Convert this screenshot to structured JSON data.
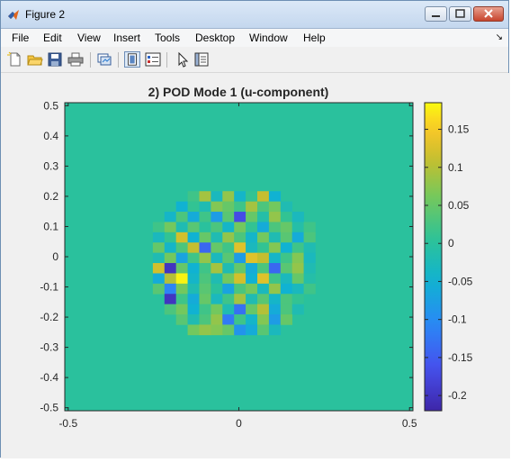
{
  "window": {
    "title": "Figure 2"
  },
  "menu": {
    "items": [
      "File",
      "Edit",
      "View",
      "Insert",
      "Tools",
      "Desktop",
      "Window",
      "Help"
    ]
  },
  "toolbar": {
    "buttons": [
      "new-figure",
      "open-file",
      "save",
      "print",
      "link-plot",
      "dock",
      "insert-legend",
      "pointer",
      "property-inspector"
    ]
  },
  "colors": {
    "field_background": "#2fc39a",
    "grid_cell": "#0fb1b2",
    "colormap": "parula"
  },
  "chart_data": {
    "type": "heatmap",
    "title": "2) POD Mode 1 (u-component)",
    "xlim": [
      -0.51,
      0.51
    ],
    "ylim": [
      -0.51,
      0.51
    ],
    "x_ticks": [
      -0.5,
      0,
      0.5
    ],
    "x_tick_labels": [
      "-0.5",
      "0",
      "0.5"
    ],
    "y_ticks": [
      0.5,
      0.4,
      0.3,
      0.2,
      0.1,
      0,
      -0.1,
      -0.2,
      -0.3,
      -0.4,
      -0.5
    ],
    "y_tick_labels": [
      "0.5",
      "0.4",
      "0.3",
      "0.2",
      "0.1",
      "0",
      "-0.1",
      "-0.2",
      "-0.3",
      "-0.4",
      "-0.5"
    ],
    "colorbar": {
      "range": [
        -0.22,
        0.185
      ],
      "ticks": [
        0.15,
        0.1,
        0.05,
        0,
        -0.05,
        -0.1,
        -0.15,
        -0.2
      ],
      "tick_labels": [
        "0.15",
        "0.1",
        "0.05",
        "0",
        "-0.05",
        "-0.1",
        "-0.15",
        "-0.2"
      ]
    },
    "grid": {
      "cell_size": 0.034,
      "circle_radius": 0.3,
      "background_value": 0
    },
    "cells": [
      [
        -0.133,
        0.2,
        0.02
      ],
      [
        -0.099,
        0.2,
        0.09
      ],
      [
        -0.065,
        0.2,
        -0.03
      ],
      [
        -0.031,
        0.2,
        0.08
      ],
      [
        0.003,
        0.2,
        -0.04
      ],
      [
        0.037,
        0.2,
        0.01
      ],
      [
        0.071,
        0.2,
        0.11
      ],
      [
        0.105,
        0.2,
        -0.05
      ],
      [
        -0.167,
        0.166,
        -0.05
      ],
      [
        -0.133,
        0.166,
        0.01
      ],
      [
        -0.099,
        0.166,
        -0.02
      ],
      [
        -0.065,
        0.166,
        0.07
      ],
      [
        -0.031,
        0.166,
        0.05
      ],
      [
        0.003,
        0.166,
        0.02
      ],
      [
        0.037,
        0.166,
        0.09
      ],
      [
        0.071,
        0.166,
        0.03
      ],
      [
        0.105,
        0.166,
        0.06
      ],
      [
        0.139,
        0.166,
        -0.02
      ],
      [
        -0.201,
        0.132,
        -0.04
      ],
      [
        -0.167,
        0.132,
        0.03
      ],
      [
        -0.133,
        0.132,
        -0.06
      ],
      [
        -0.099,
        0.132,
        0.02
      ],
      [
        -0.065,
        0.132,
        -0.08
      ],
      [
        -0.031,
        0.132,
        0.04
      ],
      [
        0.003,
        0.132,
        -0.17
      ],
      [
        0.037,
        0.132,
        0.05
      ],
      [
        0.071,
        0.132,
        -0.01
      ],
      [
        0.105,
        0.132,
        0.08
      ],
      [
        0.139,
        0.132,
        0.01
      ],
      [
        0.173,
        0.132,
        -0.03
      ],
      [
        -0.235,
        0.098,
        0.02
      ],
      [
        -0.201,
        0.098,
        0.06
      ],
      [
        -0.167,
        0.098,
        -0.02
      ],
      [
        -0.133,
        0.098,
        0.04
      ],
      [
        -0.099,
        0.098,
        0.0
      ],
      [
        -0.065,
        0.098,
        0.03
      ],
      [
        -0.031,
        0.098,
        -0.04
      ],
      [
        0.003,
        0.098,
        0.06
      ],
      [
        0.037,
        0.098,
        0.01
      ],
      [
        0.071,
        0.098,
        -0.06
      ],
      [
        0.105,
        0.098,
        0.03
      ],
      [
        0.139,
        0.098,
        0.05
      ],
      [
        0.173,
        0.098,
        -0.01
      ],
      [
        0.207,
        0.098,
        0.02
      ],
      [
        -0.235,
        0.064,
        -0.03
      ],
      [
        -0.201,
        0.064,
        0.01
      ],
      [
        -0.167,
        0.064,
        0.12
      ],
      [
        -0.133,
        0.064,
        -0.05
      ],
      [
        -0.099,
        0.064,
        0.05
      ],
      [
        -0.065,
        0.064,
        -0.02
      ],
      [
        -0.031,
        0.064,
        0.08
      ],
      [
        0.003,
        0.064,
        0.03
      ],
      [
        0.037,
        0.064,
        -0.04
      ],
      [
        0.071,
        0.064,
        0.06
      ],
      [
        0.105,
        0.064,
        -0.02
      ],
      [
        0.139,
        0.064,
        0.04
      ],
      [
        0.173,
        0.064,
        -0.06
      ],
      [
        0.207,
        0.064,
        0.03
      ],
      [
        -0.235,
        0.03,
        0.05
      ],
      [
        -0.201,
        0.03,
        -0.04
      ],
      [
        -0.167,
        0.03,
        0.03
      ],
      [
        -0.133,
        0.03,
        0.11
      ],
      [
        -0.099,
        0.03,
        -0.14
      ],
      [
        -0.065,
        0.03,
        0.05
      ],
      [
        -0.031,
        0.03,
        0.02
      ],
      [
        0.003,
        0.03,
        0.13
      ],
      [
        0.037,
        0.03,
        -0.03
      ],
      [
        0.071,
        0.03,
        0.01
      ],
      [
        0.105,
        0.03,
        0.07
      ],
      [
        0.139,
        0.03,
        -0.05
      ],
      [
        0.173,
        0.03,
        0.02
      ],
      [
        0.207,
        0.03,
        -0.02
      ],
      [
        -0.235,
        -0.004,
        -0.02
      ],
      [
        -0.201,
        -0.004,
        0.06
      ],
      [
        -0.167,
        -0.004,
        -0.07
      ],
      [
        -0.133,
        -0.004,
        0.02
      ],
      [
        -0.099,
        -0.004,
        0.08
      ],
      [
        -0.065,
        -0.004,
        -0.03
      ],
      [
        -0.031,
        -0.004,
        0.04
      ],
      [
        0.003,
        -0.004,
        -0.08
      ],
      [
        0.037,
        -0.004,
        0.13
      ],
      [
        0.071,
        -0.004,
        0.11
      ],
      [
        0.105,
        -0.004,
        -0.04
      ],
      [
        0.139,
        -0.004,
        0.02
      ],
      [
        0.173,
        -0.004,
        0.07
      ],
      [
        0.207,
        -0.004,
        -0.03
      ],
      [
        -0.235,
        -0.038,
        0.12
      ],
      [
        -0.201,
        -0.038,
        -0.2
      ],
      [
        -0.167,
        -0.038,
        0.05
      ],
      [
        -0.133,
        -0.038,
        -0.05
      ],
      [
        -0.099,
        -0.038,
        0.02
      ],
      [
        -0.065,
        -0.038,
        0.09
      ],
      [
        -0.031,
        -0.038,
        -0.02
      ],
      [
        0.003,
        -0.038,
        0.05
      ],
      [
        0.037,
        -0.038,
        -0.06
      ],
      [
        0.071,
        -0.038,
        0.03
      ],
      [
        0.105,
        -0.038,
        -0.14
      ],
      [
        0.139,
        -0.038,
        0.04
      ],
      [
        0.173,
        -0.038,
        0.08
      ],
      [
        0.207,
        -0.038,
        -0.02
      ],
      [
        -0.235,
        -0.072,
        -0.06
      ],
      [
        -0.201,
        -0.072,
        0.1
      ],
      [
        -0.167,
        -0.072,
        0.18
      ],
      [
        -0.133,
        -0.072,
        -0.04
      ],
      [
        -0.099,
        -0.072,
        0.03
      ],
      [
        -0.065,
        -0.072,
        -0.02
      ],
      [
        -0.031,
        -0.072,
        0.06
      ],
      [
        0.003,
        -0.072,
        0.12
      ],
      [
        0.037,
        -0.072,
        -0.05
      ],
      [
        0.071,
        -0.072,
        0.13
      ],
      [
        0.105,
        -0.072,
        0.02
      ],
      [
        0.139,
        -0.072,
        -0.03
      ],
      [
        0.173,
        -0.072,
        0.05
      ],
      [
        0.207,
        -0.072,
        -0.01
      ],
      [
        -0.235,
        -0.106,
        0.04
      ],
      [
        -0.201,
        -0.106,
        -0.11
      ],
      [
        -0.167,
        -0.106,
        0.06
      ],
      [
        -0.133,
        -0.106,
        -0.02
      ],
      [
        -0.099,
        -0.106,
        0.04
      ],
      [
        -0.065,
        -0.106,
        0.0
      ],
      [
        -0.031,
        -0.106,
        -0.07
      ],
      [
        0.003,
        -0.106,
        0.03
      ],
      [
        0.037,
        -0.106,
        0.06
      ],
      [
        0.071,
        -0.106,
        -0.03
      ],
      [
        0.105,
        -0.106,
        0.08
      ],
      [
        0.139,
        -0.106,
        -0.05
      ],
      [
        0.173,
        -0.106,
        -0.03
      ],
      [
        0.207,
        -0.106,
        0.02
      ],
      [
        -0.201,
        -0.14,
        -0.2
      ],
      [
        -0.167,
        -0.14,
        0.02
      ],
      [
        -0.133,
        -0.14,
        -0.06
      ],
      [
        -0.099,
        -0.14,
        0.05
      ],
      [
        -0.065,
        -0.14,
        -0.03
      ],
      [
        -0.031,
        -0.14,
        0.02
      ],
      [
        0.003,
        -0.14,
        0.09
      ],
      [
        0.037,
        -0.14,
        -0.02
      ],
      [
        0.071,
        -0.14,
        0.04
      ],
      [
        0.105,
        -0.14,
        -0.04
      ],
      [
        0.139,
        -0.14,
        0.03
      ],
      [
        0.173,
        -0.14,
        0.01
      ],
      [
        -0.201,
        -0.174,
        0.03
      ],
      [
        -0.167,
        -0.174,
        0.06
      ],
      [
        -0.133,
        -0.174,
        -0.05
      ],
      [
        -0.099,
        -0.174,
        0.02
      ],
      [
        -0.065,
        -0.174,
        0.06
      ],
      [
        -0.031,
        -0.174,
        -0.02
      ],
      [
        0.003,
        -0.174,
        -0.13
      ],
      [
        0.037,
        -0.174,
        0.05
      ],
      [
        0.071,
        -0.174,
        0.1
      ],
      [
        0.105,
        -0.174,
        -0.06
      ],
      [
        0.139,
        -0.174,
        0.03
      ],
      [
        0.173,
        -0.174,
        -0.02
      ],
      [
        -0.167,
        -0.208,
        0.04
      ],
      [
        -0.133,
        -0.208,
        -0.02
      ],
      [
        -0.099,
        -0.208,
        0.03
      ],
      [
        -0.065,
        -0.208,
        0.08
      ],
      [
        -0.031,
        -0.208,
        -0.12
      ],
      [
        0.003,
        -0.208,
        0.02
      ],
      [
        0.037,
        -0.208,
        -0.04
      ],
      [
        0.071,
        -0.208,
        0.07
      ],
      [
        0.105,
        -0.208,
        -0.08
      ],
      [
        0.139,
        -0.208,
        0.05
      ],
      [
        -0.133,
        -0.242,
        0.06
      ],
      [
        -0.099,
        -0.242,
        0.08
      ],
      [
        -0.065,
        -0.242,
        0.07
      ],
      [
        -0.031,
        -0.242,
        0.05
      ],
      [
        0.003,
        -0.242,
        -0.09
      ],
      [
        0.037,
        -0.242,
        -0.06
      ],
      [
        0.071,
        -0.242,
        0.04
      ],
      [
        0.105,
        -0.242,
        -0.03
      ]
    ]
  }
}
